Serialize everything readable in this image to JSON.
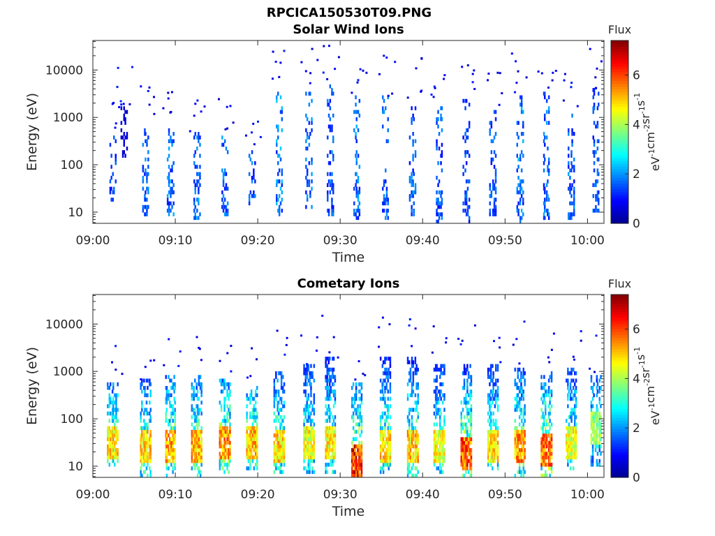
{
  "figure": {
    "title": "RPCICA150530T09.PNG"
  },
  "colors": {
    "colormap": [
      "#00008f",
      "#0000ff",
      "#007fff",
      "#00ffff",
      "#7fff7f",
      "#ffff00",
      "#ff7f00",
      "#ff0000",
      "#7f0000"
    ]
  },
  "chart_data": [
    {
      "type": "heatmap",
      "title": "Solar Wind Ions",
      "xlabel": "Time",
      "ylabel": "Energy (eV)",
      "x_ticks": [
        "09:00",
        "09:10",
        "09:20",
        "09:30",
        "09:40",
        "09:50",
        "10:00"
      ],
      "x_range_minutes": [
        0,
        62
      ],
      "y_ticks": [
        "10",
        "100",
        "1000",
        "10000"
      ],
      "y_range_eV": [
        5.8,
        42000
      ],
      "y_scale": "log",
      "colorbar": {
        "title": "Flux",
        "label_base": "eV",
        "label_parts": [
          "-1",
          "cm",
          "-2",
          "sr",
          "-1",
          "s",
          "-1"
        ],
        "ticks": [
          "0",
          "2",
          "4",
          "6"
        ],
        "range": [
          0,
          7.4
        ]
      },
      "bursts": [
        {
          "t": 2.4,
          "e_lo": 18,
          "e_hi": 400,
          "flux": 1.4
        },
        {
          "t": 3.8,
          "e_lo": 150,
          "e_hi": 1700,
          "flux": 0.6
        },
        {
          "t": 6.4,
          "e_lo": 8,
          "e_hi": 700,
          "flux": 1.6
        },
        {
          "t": 9.4,
          "e_lo": 8,
          "e_hi": 600,
          "flux": 1.8
        },
        {
          "t": 12.6,
          "e_lo": 7,
          "e_hi": 500,
          "flux": 1.8
        },
        {
          "t": 16.0,
          "e_lo": 9,
          "e_hi": 450,
          "flux": 1.7
        },
        {
          "t": 19.3,
          "e_lo": 14,
          "e_hi": 200,
          "flux": 1.6
        },
        {
          "t": 22.6,
          "e_lo": 9,
          "e_hi": 3500,
          "flux": 1.9
        },
        {
          "t": 26.2,
          "e_lo": 12,
          "e_hi": 4500,
          "flux": 1.7
        },
        {
          "t": 28.8,
          "e_lo": 9,
          "e_hi": 6000,
          "flux": 1.6
        },
        {
          "t": 32.0,
          "e_lo": 6,
          "e_hi": 3000,
          "flux": 1.8
        },
        {
          "t": 35.5,
          "e_lo": 7,
          "e_hi": 3000,
          "flux": 1.6
        },
        {
          "t": 38.8,
          "e_lo": 8,
          "e_hi": 2500,
          "flux": 1.7
        },
        {
          "t": 42.0,
          "e_lo": 6,
          "e_hi": 2500,
          "flux": 1.6
        },
        {
          "t": 45.3,
          "e_lo": 6,
          "e_hi": 2500,
          "flux": 1.5
        },
        {
          "t": 48.5,
          "e_lo": 9,
          "e_hi": 1500,
          "flux": 1.5
        },
        {
          "t": 51.8,
          "e_lo": 6,
          "e_hi": 3000,
          "flux": 1.8
        },
        {
          "t": 55.0,
          "e_lo": 7,
          "e_hi": 3500,
          "flux": 1.7
        },
        {
          "t": 58.0,
          "e_lo": 7,
          "e_hi": 1500,
          "flux": 1.6
        },
        {
          "t": 61.0,
          "e_lo": 9,
          "e_hi": 4000,
          "flux": 1.6
        }
      ]
    },
    {
      "type": "heatmap",
      "title": "Cometary Ions",
      "xlabel": "Time",
      "ylabel": "Energy (eV)",
      "x_ticks": [
        "09:00",
        "09:10",
        "09:20",
        "09:30",
        "09:40",
        "09:50",
        "10:00"
      ],
      "x_range_minutes": [
        0,
        62
      ],
      "y_ticks": [
        "10",
        "100",
        "1000",
        "10000"
      ],
      "y_range_eV": [
        5.8,
        42000
      ],
      "y_scale": "log",
      "colorbar": {
        "title": "Flux",
        "label_base": "eV",
        "label_parts": [
          "-1",
          "cm",
          "-2",
          "sr",
          "-1",
          "s",
          "-1"
        ],
        "ticks": [
          "0",
          "2",
          "4",
          "6"
        ],
        "range": [
          0,
          7.4
        ]
      },
      "bursts": [
        {
          "t": 2.4,
          "e_lo": 10,
          "e_hi": 600,
          "flux": 4.6,
          "peak_e": 30
        },
        {
          "t": 6.4,
          "e_lo": 6,
          "e_hi": 700,
          "flux": 4.7,
          "peak_e": 25
        },
        {
          "t": 9.4,
          "e_lo": 6,
          "e_hi": 800,
          "flux": 5.0,
          "peak_e": 25
        },
        {
          "t": 12.6,
          "e_lo": 6,
          "e_hi": 900,
          "flux": 5.0,
          "peak_e": 25
        },
        {
          "t": 16.0,
          "e_lo": 7,
          "e_hi": 700,
          "flux": 5.2,
          "peak_e": 30
        },
        {
          "t": 19.3,
          "e_lo": 8,
          "e_hi": 500,
          "flux": 4.9,
          "peak_e": 30
        },
        {
          "t": 22.6,
          "e_lo": 7,
          "e_hi": 1000,
          "flux": 4.7,
          "peak_e": 28
        },
        {
          "t": 26.2,
          "e_lo": 7,
          "e_hi": 1500,
          "flux": 4.4,
          "peak_e": 30
        },
        {
          "t": 28.8,
          "e_lo": 7,
          "e_hi": 2000,
          "flux": 4.5,
          "peak_e": 30
        },
        {
          "t": 32.0,
          "e_lo": 6,
          "e_hi": 600,
          "flux": 6.0,
          "peak_e": 12
        },
        {
          "t": 35.5,
          "e_lo": 7,
          "e_hi": 2000,
          "flux": 4.7,
          "peak_e": 28
        },
        {
          "t": 38.8,
          "e_lo": 6,
          "e_hi": 2000,
          "flux": 4.8,
          "peak_e": 25
        },
        {
          "t": 42.0,
          "e_lo": 7,
          "e_hi": 1500,
          "flux": 4.4,
          "peak_e": 28
        },
        {
          "t": 45.3,
          "e_lo": 6,
          "e_hi": 1500,
          "flux": 5.6,
          "peak_e": 18
        },
        {
          "t": 48.5,
          "e_lo": 7,
          "e_hi": 1500,
          "flux": 4.6,
          "peak_e": 25
        },
        {
          "t": 51.8,
          "e_lo": 6,
          "e_hi": 1500,
          "flux": 5.2,
          "peak_e": 25
        },
        {
          "t": 55.0,
          "e_lo": 6,
          "e_hi": 1000,
          "flux": 5.5,
          "peak_e": 22
        },
        {
          "t": 58.0,
          "e_lo": 8,
          "e_hi": 1200,
          "flux": 4.3,
          "peak_e": 30
        },
        {
          "t": 61.0,
          "e_lo": 10,
          "e_hi": 800,
          "flux": 3.8,
          "peak_e": 60
        }
      ]
    }
  ]
}
